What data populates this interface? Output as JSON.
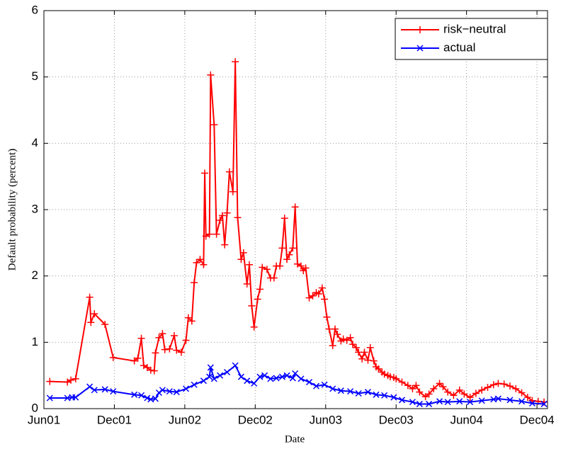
{
  "chart_data": {
    "type": "line",
    "x_label": "Date",
    "y_label": "Default probability (percent)",
    "xlim": [
      0,
      42.9
    ],
    "ylim": [
      0,
      6
    ],
    "xticks": [
      {
        "value": 0,
        "label": "Jun01"
      },
      {
        "value": 6,
        "label": "Dec01"
      },
      {
        "value": 12,
        "label": "Jun02"
      },
      {
        "value": 18,
        "label": "Dec02"
      },
      {
        "value": 24,
        "label": "Jun03"
      },
      {
        "value": 30,
        "label": "Dec03"
      },
      {
        "value": 36,
        "label": "Jun04"
      },
      {
        "value": 42,
        "label": "Dec04"
      }
    ],
    "yticks": [
      0,
      1,
      2,
      3,
      4,
      5,
      6
    ],
    "grid": true,
    "legend": "top-right",
    "series": [
      {
        "name": "risk−neutral",
        "color": "#ff0000",
        "marker": "+",
        "x": [
          0.5,
          2.0,
          2.3,
          2.7,
          3.9,
          4.0,
          4.3,
          5.2,
          5.9,
          7.7,
          8.0,
          8.3,
          8.5,
          8.8,
          9.1,
          9.4,
          9.5,
          9.8,
          10.1,
          10.3,
          10.7,
          11.1,
          11.3,
          11.7,
          12.1,
          12.3,
          12.6,
          12.8,
          13.0,
          13.3,
          13.6,
          13.7,
          13.8,
          14.1,
          14.2,
          14.5,
          14.7,
          15.0,
          15.2,
          15.4,
          15.6,
          15.8,
          16.1,
          16.3,
          16.5,
          16.8,
          17.0,
          17.3,
          17.5,
          17.7,
          17.9,
          18.2,
          18.4,
          18.6,
          19.0,
          19.3,
          19.6,
          19.8,
          20.1,
          20.3,
          20.5,
          20.7,
          20.9,
          21.2,
          21.4,
          21.6,
          21.9,
          22.1,
          22.3,
          22.6,
          22.9,
          23.2,
          23.4,
          23.7,
          23.9,
          24.1,
          24.3,
          24.6,
          24.8,
          25.0,
          25.3,
          25.5,
          25.8,
          26.1,
          26.3,
          26.6,
          26.8,
          27.1,
          27.3,
          27.6,
          27.8,
          28.1,
          28.3,
          28.5,
          28.8,
          29.0,
          29.3,
          29.5,
          29.8,
          30.0,
          30.5,
          31.0,
          31.4,
          31.7,
          32.0,
          32.5,
          32.8,
          33.2,
          33.7,
          34.0,
          34.4,
          34.9,
          35.4,
          35.8,
          36.3,
          36.8,
          37.3,
          37.8,
          38.3,
          38.7,
          39.2,
          39.7,
          40.2,
          40.7,
          41.2,
          41.6,
          42.1,
          42.6
        ],
        "values": [
          0.41,
          0.4,
          0.43,
          0.45,
          1.68,
          1.3,
          1.43,
          1.27,
          0.77,
          0.72,
          0.76,
          1.06,
          0.65,
          0.62,
          0.58,
          0.57,
          0.84,
          1.07,
          1.13,
          0.89,
          0.9,
          1.1,
          0.88,
          0.85,
          1.03,
          1.37,
          1.32,
          1.9,
          2.2,
          2.25,
          2.17,
          3.55,
          2.6,
          2.63,
          5.03,
          4.28,
          2.63,
          2.84,
          2.91,
          2.47,
          2.95,
          3.57,
          3.27,
          5.23,
          2.88,
          2.25,
          2.35,
          1.88,
          2.17,
          1.55,
          1.23,
          1.65,
          1.8,
          2.13,
          2.1,
          1.97,
          1.97,
          2.15,
          2.15,
          2.42,
          2.87,
          2.25,
          2.32,
          2.42,
          3.04,
          2.18,
          2.15,
          2.08,
          2.12,
          1.67,
          1.7,
          1.75,
          1.73,
          1.82,
          1.65,
          1.38,
          1.2,
          0.95,
          1.2,
          1.12,
          1.02,
          1.05,
          1.03,
          1.07,
          0.97,
          0.92,
          0.85,
          0.75,
          0.85,
          0.73,
          0.92,
          0.72,
          0.63,
          0.6,
          0.55,
          0.52,
          0.5,
          0.48,
          0.47,
          0.45,
          0.4,
          0.35,
          0.3,
          0.35,
          0.25,
          0.18,
          0.22,
          0.3,
          0.38,
          0.33,
          0.25,
          0.2,
          0.28,
          0.22,
          0.17,
          0.23,
          0.28,
          0.32,
          0.36,
          0.38,
          0.37,
          0.34,
          0.3,
          0.24,
          0.17,
          0.12,
          0.11,
          0.1
        ]
      },
      {
        "name": "actual",
        "color": "#0000ff",
        "marker": "x",
        "x": [
          0.5,
          2.0,
          2.4,
          2.7,
          3.9,
          4.3,
          5.2,
          5.9,
          7.7,
          8.3,
          8.8,
          9.1,
          9.5,
          9.8,
          10.1,
          10.7,
          11.3,
          12.1,
          12.8,
          13.6,
          14.1,
          14.2,
          14.5,
          15.0,
          15.6,
          16.3,
          16.8,
          17.3,
          17.9,
          18.4,
          18.8,
          19.3,
          19.8,
          20.3,
          20.7,
          21.2,
          21.4,
          21.9,
          22.6,
          23.2,
          23.9,
          24.6,
          25.3,
          26.1,
          26.8,
          27.6,
          28.3,
          29.0,
          29.8,
          30.5,
          31.4,
          32.0,
          32.8,
          33.7,
          34.4,
          35.4,
          36.3,
          37.3,
          38.3,
          38.7,
          39.7,
          40.7,
          41.6,
          42.6
        ],
        "values": [
          0.16,
          0.16,
          0.17,
          0.17,
          0.33,
          0.28,
          0.29,
          0.26,
          0.21,
          0.2,
          0.16,
          0.14,
          0.15,
          0.24,
          0.28,
          0.26,
          0.25,
          0.3,
          0.36,
          0.42,
          0.48,
          0.62,
          0.45,
          0.5,
          0.55,
          0.65,
          0.48,
          0.42,
          0.38,
          0.48,
          0.5,
          0.45,
          0.46,
          0.48,
          0.5,
          0.46,
          0.53,
          0.45,
          0.4,
          0.34,
          0.36,
          0.3,
          0.27,
          0.26,
          0.23,
          0.25,
          0.21,
          0.2,
          0.17,
          0.13,
          0.1,
          0.07,
          0.07,
          0.11,
          0.1,
          0.11,
          0.1,
          0.12,
          0.14,
          0.15,
          0.13,
          0.11,
          0.08,
          0.07
        ]
      }
    ]
  }
}
